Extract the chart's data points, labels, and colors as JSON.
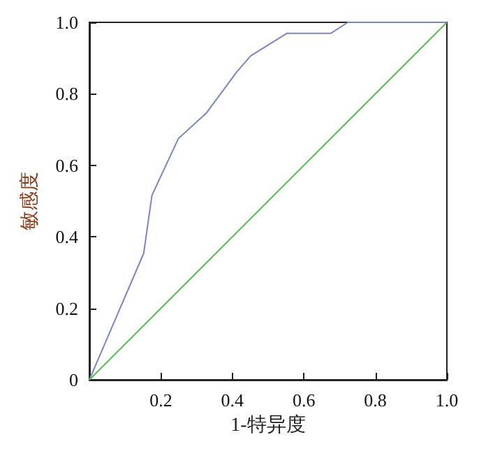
{
  "chart_data": {
    "type": "line",
    "xlabel": "1-特异度",
    "ylabel": "敏感度",
    "xlim": [
      0,
      1
    ],
    "ylim": [
      0,
      1
    ],
    "xticks": [
      0.2,
      0.4,
      0.6,
      0.8,
      {
        "value": 1,
        "label": "1.0"
      }
    ],
    "yticks": [
      0,
      0.2,
      0.4,
      0.6,
      0.8,
      {
        "value": 1,
        "label": "1.0"
      }
    ],
    "grid": false,
    "marker": "none",
    "line_style": "solid",
    "series": [
      {
        "color": "#7b86c8",
        "x": [
          0,
          0.152,
          0.175,
          0.249,
          0.327,
          0.412,
          0.451,
          0.552,
          0.675,
          0.723,
          1
        ],
        "values": [
          0,
          0.354,
          0.516,
          0.675,
          0.746,
          0.861,
          0.906,
          0.969,
          0.969,
          1,
          1
        ]
      },
      {
        "color": "#5cb85c",
        "x": [
          0,
          1
        ],
        "values": [
          0,
          1
        ]
      }
    ]
  }
}
